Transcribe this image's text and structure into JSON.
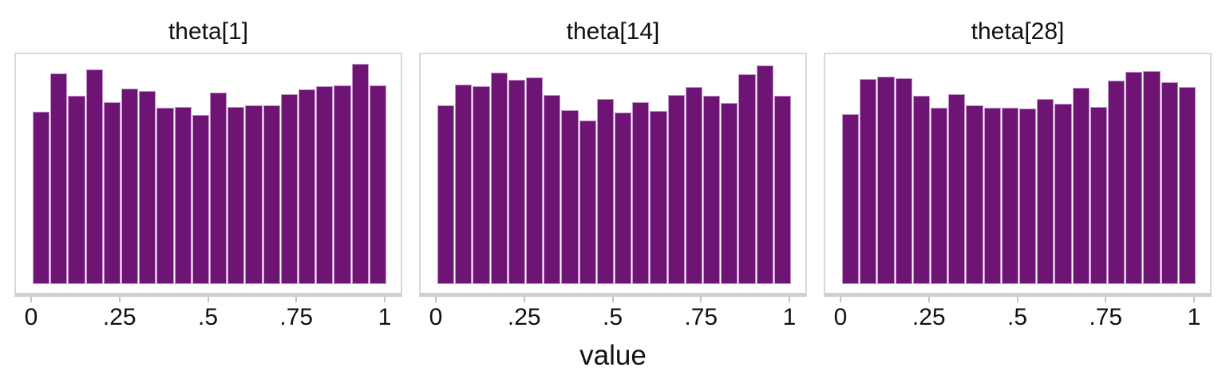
{
  "figure": {
    "axis_label": "value",
    "tick_labels": [
      "0",
      ".25",
      ".5",
      ".75",
      "1"
    ],
    "tick_values": [
      0,
      0.25,
      0.5,
      0.75,
      1
    ]
  },
  "colors": {
    "bar_fill": "#6d1475",
    "bar_border": "#c496ca",
    "panel_border": "#d9d9d9",
    "axis_line": "#cfcfcf",
    "tick_mark": "#c4c4c4",
    "text": "#111111",
    "background": "#ffffff"
  },
  "chart_data": [
    {
      "type": "bar",
      "subtype": "histogram",
      "title": "theta[1]",
      "xlabel": "value",
      "x_range": [
        0,
        1
      ],
      "bin_count": 20,
      "bin_width": 0.05,
      "x_tick_labels": [
        "0",
        ".25",
        ".5",
        ".75",
        "1"
      ],
      "rel_heights": [
        0.783,
        0.957,
        0.855,
        0.975,
        0.826,
        0.888,
        0.877,
        0.801,
        0.804,
        0.768,
        0.87,
        0.804,
        0.812,
        0.812,
        0.862,
        0.884,
        0.899,
        0.902,
        1.0,
        0.902
      ]
    },
    {
      "type": "bar",
      "subtype": "histogram",
      "title": "theta[14]",
      "xlabel": "value",
      "x_range": [
        0,
        1
      ],
      "bin_count": 20,
      "bin_width": 0.05,
      "x_tick_labels": [
        "0",
        ".25",
        ".5",
        ".75",
        "1"
      ],
      "rel_heights": [
        0.812,
        0.906,
        0.899,
        0.96,
        0.928,
        0.938,
        0.859,
        0.79,
        0.743,
        0.841,
        0.779,
        0.826,
        0.786,
        0.859,
        0.895,
        0.855,
        0.822,
        0.953,
        0.993,
        0.855
      ]
    },
    {
      "type": "bar",
      "subtype": "histogram",
      "title": "theta[28]",
      "xlabel": "value",
      "x_range": [
        0,
        1
      ],
      "bin_count": 20,
      "bin_width": 0.05,
      "x_tick_labels": [
        "0",
        ".25",
        ".5",
        ".75",
        "1"
      ],
      "rel_heights": [
        0.772,
        0.931,
        0.942,
        0.935,
        0.855,
        0.801,
        0.862,
        0.812,
        0.801,
        0.801,
        0.797,
        0.841,
        0.819,
        0.891,
        0.804,
        0.924,
        0.964,
        0.967,
        0.917,
        0.895
      ]
    }
  ]
}
